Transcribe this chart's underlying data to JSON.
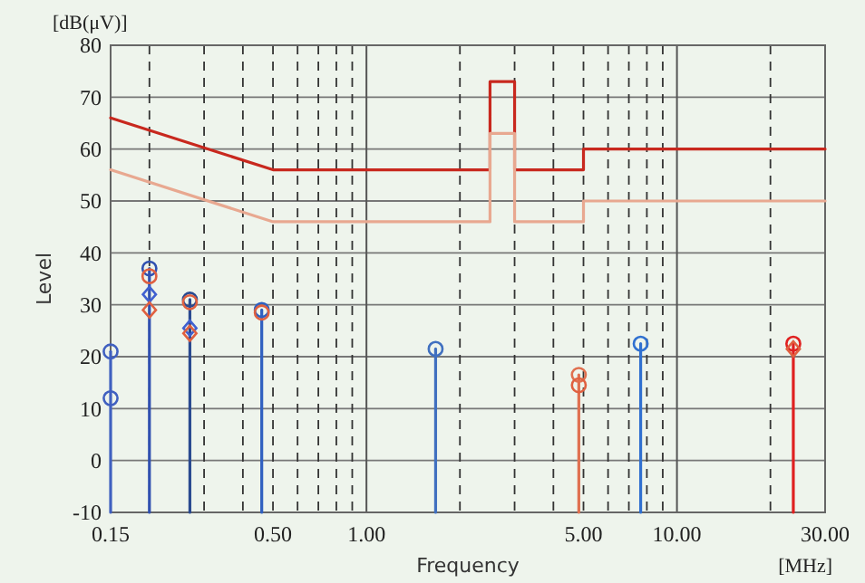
{
  "chart_data": {
    "type": "line",
    "xlabel": "Frequency",
    "ylabel": "Level",
    "annotations": [
      "[dB(μV)]",
      "[MHz]"
    ],
    "log": "x",
    "grid": true,
    "xlim": [
      0.15,
      30
    ],
    "ylim": [
      -10,
      80
    ],
    "xticks": [
      {
        "value": 0.15,
        "label": "0.15"
      },
      {
        "value": 0.2,
        "label": null
      },
      {
        "value": 0.3,
        "label": null
      },
      {
        "value": 0.4,
        "label": null
      },
      {
        "value": 0.5,
        "label": "0.50"
      },
      {
        "value": 0.6,
        "label": null
      },
      {
        "value": 0.7,
        "label": null
      },
      {
        "value": 0.8,
        "label": null
      },
      {
        "value": 0.9,
        "label": null
      },
      {
        "value": 1,
        "label": "1.00"
      },
      {
        "value": 2,
        "label": null
      },
      {
        "value": 3,
        "label": null
      },
      {
        "value": 4,
        "label": null
      },
      {
        "value": 5,
        "label": "5.00"
      },
      {
        "value": 6,
        "label": null
      },
      {
        "value": 7,
        "label": null
      },
      {
        "value": 8,
        "label": null
      },
      {
        "value": 9,
        "label": null
      },
      {
        "value": 10,
        "label": "10.00"
      },
      {
        "value": 20,
        "label": null
      },
      {
        "value": 30,
        "label": "30.00"
      }
    ],
    "yticks": [
      -10,
      0,
      10,
      20,
      30,
      40,
      50,
      60,
      70,
      80
    ],
    "series": [
      {
        "type": "line",
        "color": "#c8281e",
        "marker": "none",
        "x": [
          0.15,
          0.5,
          2.5,
          2.5,
          3,
          3,
          5,
          5,
          30
        ],
        "values": [
          66,
          56,
          56,
          73,
          73,
          56,
          56,
          60,
          60
        ]
      },
      {
        "type": "line",
        "color": "#e8a890",
        "marker": "none",
        "x": [
          0.15,
          0.5,
          2.5,
          2.5,
          3,
          3,
          5,
          5,
          30
        ],
        "values": [
          56,
          46,
          46,
          63,
          63,
          46,
          46,
          50,
          50
        ]
      },
      {
        "color": "#4060c0",
        "marker": "none",
        "x": [
          0.15,
          0.15
        ],
        "values": [
          -10,
          21
        ]
      },
      {
        "color": "#3050b0",
        "marker": "none",
        "x": [
          0.2,
          0.2
        ],
        "values": [
          -10,
          37
        ]
      },
      {
        "color": "#2a4a90",
        "marker": "none",
        "x": [
          0.27,
          0.27
        ],
        "values": [
          -10,
          31
        ]
      },
      {
        "color": "#3060c0",
        "marker": "none",
        "x": [
          0.46,
          0.46
        ],
        "values": [
          -10,
          29
        ]
      },
      {
        "color": "#4070c0",
        "marker": "none",
        "x": [
          1.67,
          1.67
        ],
        "values": [
          -10,
          21.5
        ]
      },
      {
        "color": "#e07050",
        "marker": "none",
        "x": [
          4.83,
          4.83
        ],
        "values": [
          -10,
          16.5
        ]
      },
      {
        "color": "#3070d0",
        "marker": "none",
        "x": [
          7.64,
          7.64
        ],
        "values": [
          -10,
          22.5
        ]
      },
      {
        "color": "#e02020",
        "marker": "none",
        "x": [
          23.7,
          23.7
        ],
        "values": [
          -10,
          22.5
        ]
      },
      {
        "type": "scatter",
        "marker": "circle",
        "x": [
          0.2,
          0.27,
          0.46,
          1.67,
          4.83,
          7.64,
          23.7
        ],
        "values": [
          37,
          31,
          29,
          21.5,
          16.5,
          22.5,
          22.5
        ],
        "colors": [
          "#3050b0",
          "#2a4a90",
          "#3060c0",
          "#4070c0",
          "#e07050",
          "#3070d0",
          "#e02020"
        ]
      },
      {
        "type": "scatter",
        "marker": "circle",
        "color": "#4060c0",
        "x": [
          0.15
        ],
        "values": [
          21
        ]
      },
      {
        "type": "scatter",
        "marker": "circle",
        "color": "#4060c0",
        "x": [
          0.15
        ],
        "values": [
          12
        ]
      },
      {
        "type": "scatter",
        "marker": "circle",
        "color": "#e06040",
        "x": [
          0.2,
          0.27,
          0.46,
          4.83
        ],
        "values": [
          35.5,
          30.5,
          28.5,
          14.5
        ]
      },
      {
        "type": "scatter",
        "marker": "diamond",
        "color": "#4060d0",
        "x": [
          0.2,
          0.27
        ],
        "values": [
          32,
          25.5
        ]
      },
      {
        "type": "scatter",
        "marker": "diamond",
        "color": "#e06040",
        "x": [
          0.2,
          0.27,
          23.7
        ],
        "values": [
          29,
          24.5,
          21.5
        ]
      }
    ]
  }
}
